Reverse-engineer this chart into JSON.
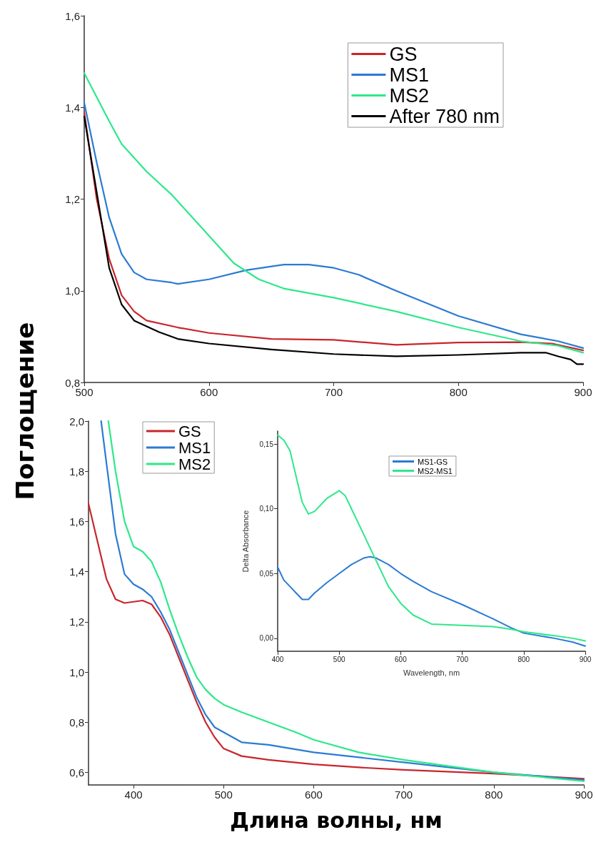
{
  "chart_data": [
    {
      "type": "line",
      "ylabel": "Поглощение",
      "xlim": [
        500,
        900
      ],
      "xticks": [
        500,
        600,
        700,
        800,
        900
      ],
      "ylim": [
        0.8,
        1.6
      ],
      "yticks": [
        {
          "value": 0.8,
          "label": "0,8"
        },
        {
          "value": 1.0,
          "label": "1,0"
        },
        {
          "value": 1.2,
          "label": "1,2"
        },
        {
          "value": 1.4,
          "label": "1,4"
        },
        {
          "value": 1.6,
          "label": "1,6"
        }
      ],
      "grid": false,
      "legend": "top right",
      "marker": "none",
      "line_style": "solid",
      "series": [
        {
          "name": "GS",
          "color": "#c8262b",
          "x": [
            500,
            510,
            520,
            530,
            540,
            550,
            575,
            600,
            650,
            700,
            750,
            800,
            850,
            875,
            900
          ],
          "values": [
            1.39,
            1.2,
            1.07,
            0.99,
            0.955,
            0.935,
            0.92,
            0.908,
            0.895,
            0.893,
            0.882,
            0.887,
            0.888,
            0.885,
            0.87
          ]
        },
        {
          "name": "MS1",
          "color": "#2b7bd3",
          "x": [
            500,
            510,
            520,
            530,
            540,
            550,
            570,
            575,
            600,
            630,
            660,
            680,
            700,
            720,
            750,
            800,
            850,
            880,
            900
          ],
          "values": [
            1.41,
            1.28,
            1.16,
            1.08,
            1.04,
            1.025,
            1.018,
            1.015,
            1.025,
            1.045,
            1.057,
            1.057,
            1.05,
            1.035,
            1.0,
            0.945,
            0.905,
            0.89,
            0.875
          ]
        },
        {
          "name": "MS2",
          "color": "#2ee88a",
          "x": [
            500,
            520,
            530,
            550,
            570,
            600,
            620,
            640,
            660,
            700,
            750,
            800,
            850,
            880,
            900
          ],
          "values": [
            1.475,
            1.37,
            1.32,
            1.26,
            1.21,
            1.12,
            1.06,
            1.025,
            1.005,
            0.985,
            0.955,
            0.92,
            0.89,
            0.88,
            0.865
          ]
        },
        {
          "name": "After 780 nm",
          "color": "#000000",
          "x": [
            500,
            520,
            530,
            540,
            560,
            575,
            600,
            650,
            700,
            750,
            800,
            850,
            870,
            880,
            890,
            895,
            900
          ],
          "values": [
            1.38,
            1.05,
            0.97,
            0.935,
            0.91,
            0.895,
            0.885,
            0.872,
            0.862,
            0.857,
            0.86,
            0.865,
            0.865,
            0.857,
            0.85,
            0.84,
            0.84
          ]
        }
      ]
    },
    {
      "type": "line",
      "xlabel": "Длина волны, нм",
      "xlim": [
        350,
        900
      ],
      "xticks": [
        400,
        500,
        600,
        700,
        800,
        900
      ],
      "ylim": [
        0.55,
        2.0
      ],
      "yticks": [
        {
          "value": 0.6,
          "label": "0,6"
        },
        {
          "value": 0.8,
          "label": "0,8"
        },
        {
          "value": 1.0,
          "label": "1,0"
        },
        {
          "value": 1.2,
          "label": "1,2"
        },
        {
          "value": 1.4,
          "label": "1,4"
        },
        {
          "value": 1.6,
          "label": "1,6"
        },
        {
          "value": 1.8,
          "label": "1,8"
        },
        {
          "value": 2.0,
          "label": "2,0"
        }
      ],
      "grid": false,
      "legend": "top left",
      "marker": "none",
      "line_style": "solid",
      "series": [
        {
          "name": "GS",
          "color": "#c8262b",
          "x": [
            350,
            360,
            370,
            380,
            390,
            400,
            410,
            420,
            430,
            440,
            450,
            460,
            470,
            480,
            490,
            500,
            520,
            550,
            600,
            650,
            700,
            800,
            900
          ],
          "values": [
            1.67,
            1.52,
            1.37,
            1.29,
            1.275,
            1.28,
            1.285,
            1.27,
            1.22,
            1.15,
            1.06,
            0.97,
            0.88,
            0.8,
            0.74,
            0.695,
            0.665,
            0.65,
            0.632,
            0.62,
            0.61,
            0.595,
            0.575
          ]
        },
        {
          "name": "MS1",
          "color": "#2b7bd3",
          "x": [
            364,
            370,
            380,
            390,
            400,
            410,
            420,
            430,
            440,
            450,
            460,
            470,
            480,
            490,
            500,
            520,
            550,
            600,
            700,
            800,
            900
          ],
          "values": [
            2.0,
            1.83,
            1.55,
            1.39,
            1.35,
            1.33,
            1.3,
            1.24,
            1.17,
            1.08,
            0.99,
            0.9,
            0.83,
            0.78,
            0.76,
            0.72,
            0.71,
            0.68,
            0.64,
            0.6,
            0.57
          ]
        },
        {
          "name": "MS2",
          "color": "#2ee88a",
          "x": [
            372,
            380,
            390,
            400,
            410,
            420,
            430,
            440,
            450,
            460,
            470,
            480,
            490,
            500,
            520,
            550,
            580,
            600,
            650,
            700,
            800,
            900
          ],
          "values": [
            2.0,
            1.8,
            1.6,
            1.5,
            1.48,
            1.44,
            1.36,
            1.25,
            1.15,
            1.06,
            0.98,
            0.93,
            0.895,
            0.87,
            0.84,
            0.8,
            0.76,
            0.73,
            0.68,
            0.65,
            0.6,
            0.565
          ]
        }
      ]
    },
    {
      "type": "line",
      "xlabel": "Wavelength, nm",
      "ylabel": "Delta Absorbance",
      "xlim": [
        400,
        900
      ],
      "xticks": [
        400,
        500,
        600,
        700,
        800,
        900
      ],
      "ylim": [
        -0.01,
        0.16
      ],
      "yticks": [
        {
          "value": 0,
          "label": "0,00"
        },
        {
          "value": 0.05,
          "label": "0,05"
        },
        {
          "value": 0.1,
          "label": "0,10"
        },
        {
          "value": 0.15,
          "label": "0,15"
        }
      ],
      "grid": false,
      "legend": "top",
      "marker": "none",
      "line_style": "solid",
      "series": [
        {
          "name": "MS1-GS",
          "color": "#2b7bd3",
          "x": [
            400,
            410,
            420,
            430,
            440,
            450,
            460,
            480,
            500,
            520,
            540,
            550,
            560,
            580,
            600,
            620,
            650,
            700,
            750,
            780,
            800,
            850,
            880,
            900
          ],
          "values": [
            0.055,
            0.045,
            0.04,
            0.035,
            0.03,
            0.03,
            0.035,
            0.043,
            0.05,
            0.057,
            0.062,
            0.063,
            0.062,
            0.057,
            0.05,
            0.044,
            0.036,
            0.026,
            0.015,
            0.008,
            0.004,
            0.0,
            -0.003,
            -0.006
          ]
        },
        {
          "name": "MS2-MS1",
          "color": "#2ee88a",
          "x": [
            400,
            410,
            420,
            430,
            440,
            450,
            460,
            480,
            500,
            510,
            520,
            540,
            560,
            580,
            600,
            620,
            650,
            700,
            750,
            780,
            800,
            850,
            880,
            900
          ],
          "values": [
            0.157,
            0.153,
            0.145,
            0.125,
            0.105,
            0.096,
            0.098,
            0.108,
            0.114,
            0.11,
            0.1,
            0.08,
            0.06,
            0.04,
            0.027,
            0.018,
            0.011,
            0.01,
            0.009,
            0.007,
            0.005,
            0.002,
            0.0,
            -0.002
          ]
        }
      ]
    }
  ]
}
